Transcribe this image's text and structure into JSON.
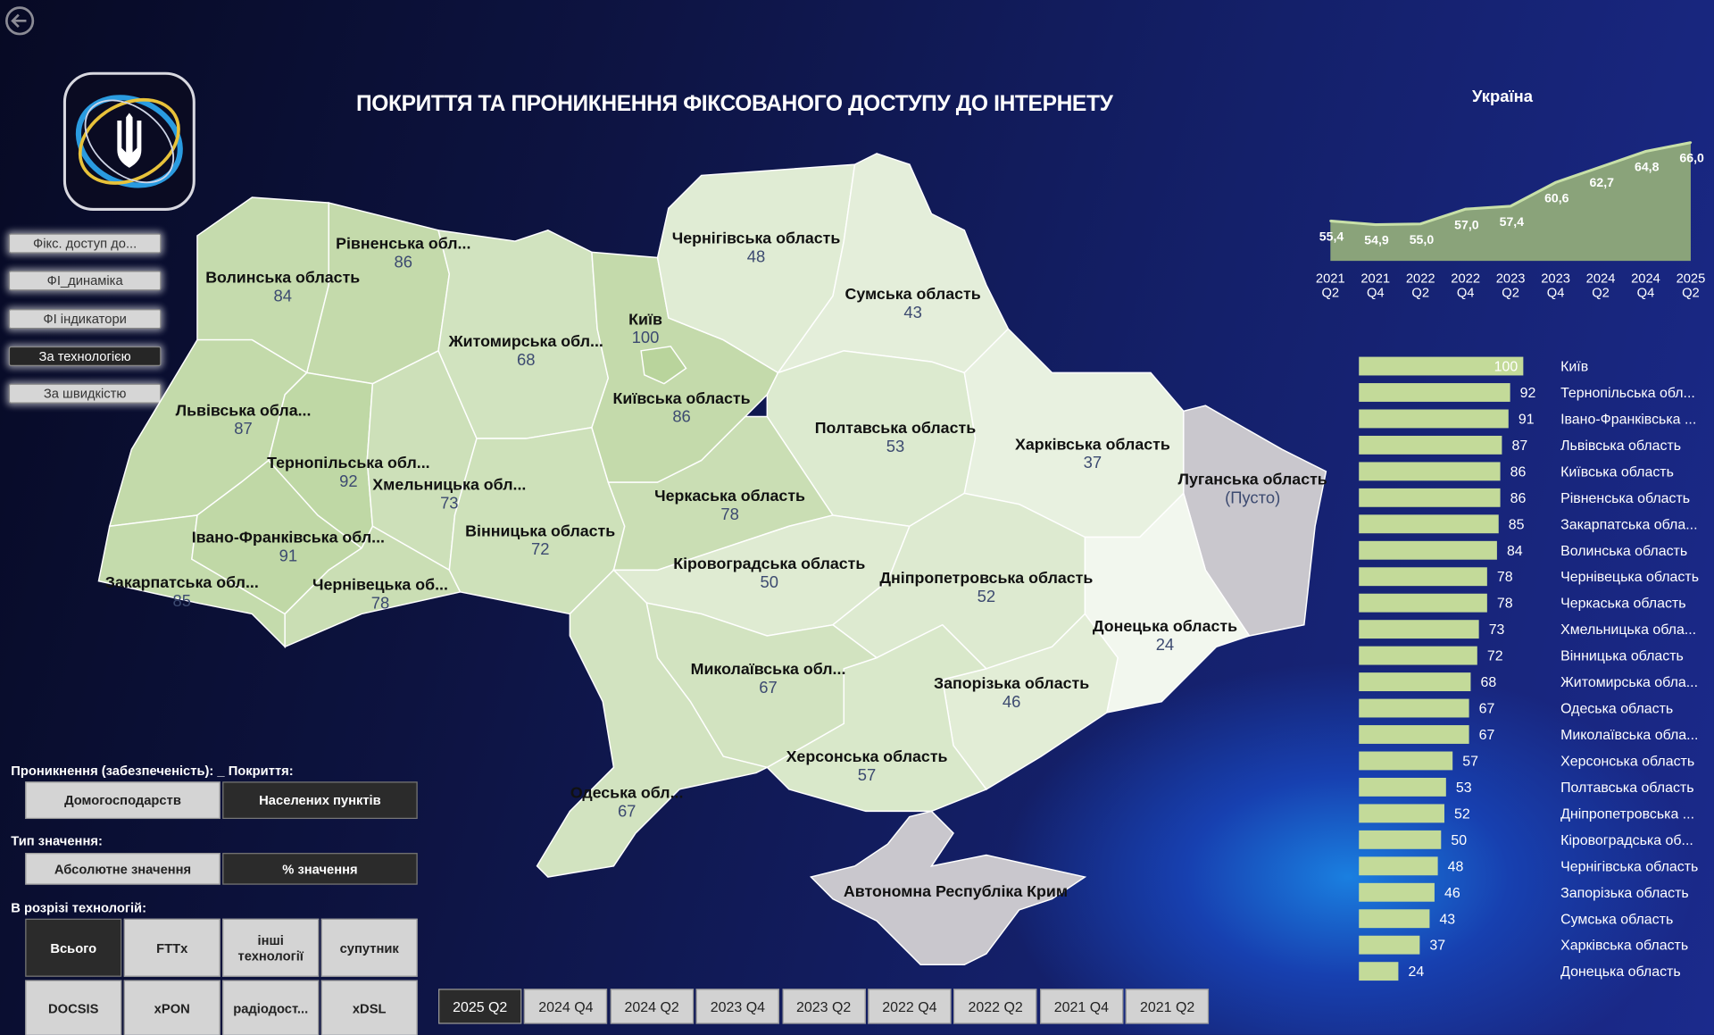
{
  "title": "ПОКРИТТЯ ТА ПРОНИКНЕННЯ ФІКСОВАНОГО ДОСТУПУ ДО ІНТЕРНЕТУ",
  "nav": {
    "back_icon": "arrow-left-circle-icon",
    "logo_icon": "trident-emblem-logo",
    "items": [
      {
        "label": "Фікс. доступ до...",
        "active": false
      },
      {
        "label": "ФІ_динаміка",
        "active": false
      },
      {
        "label": "ФІ індикатори",
        "active": false
      },
      {
        "label": "За технологією",
        "active": true
      },
      {
        "label": "За швидкістю",
        "active": false
      }
    ]
  },
  "filters": {
    "penetration_label": "Проникнення (забезпеченість): _ Покриття:",
    "penetration_options": [
      {
        "label": "Домогосподарств",
        "active": false
      },
      {
        "label": "Населених пунктів",
        "active": true
      }
    ],
    "value_type_label": "Тип значення:",
    "value_type_options": [
      {
        "label": "Абсолютне значення",
        "active": false
      },
      {
        "label": "% значення",
        "active": true
      }
    ],
    "tech_label": "В розрізі технологій:",
    "tech_options": [
      {
        "label": "Всього",
        "active": true
      },
      {
        "label": "FTTx",
        "active": false
      },
      {
        "label": "інші технології",
        "active": false
      },
      {
        "label": "супутник",
        "active": false
      },
      {
        "label": "DOCSIS",
        "active": false
      },
      {
        "label": "xPON",
        "active": false
      },
      {
        "label": "радіодост...",
        "active": false
      },
      {
        "label": "xDSL",
        "active": false
      }
    ]
  },
  "periods": [
    {
      "label": "2025 Q2",
      "active": true
    },
    {
      "label": "2024 Q4",
      "active": false
    },
    {
      "label": "2024 Q2",
      "active": false
    },
    {
      "label": "2023 Q4",
      "active": false
    },
    {
      "label": "2023 Q2",
      "active": false
    },
    {
      "label": "2022 Q4",
      "active": false
    },
    {
      "label": "2022 Q2",
      "active": false
    },
    {
      "label": "2021 Q4",
      "active": false
    },
    {
      "label": "2021 Q2",
      "active": false
    }
  ],
  "map": {
    "colors": {
      "low": "#f2f7ee",
      "high": "#b9d49c",
      "empty": "#c9c7cd",
      "empty_text": "#3b5ea8"
    },
    "regions": [
      {
        "name": "Волинська область",
        "value": "84"
      },
      {
        "name": "Рівненська обл...",
        "value": "86"
      },
      {
        "name": "Львівська обла...",
        "value": "87"
      },
      {
        "name": "Закарпатська обл...",
        "value": "85"
      },
      {
        "name": "Івано-Франківська обл...",
        "value": "91"
      },
      {
        "name": "Тернопільська обл...",
        "value": "92"
      },
      {
        "name": "Хмельницька обл...",
        "value": "73"
      },
      {
        "name": "Чернівецька об...",
        "value": "78"
      },
      {
        "name": "Житомирська обл...",
        "value": "68"
      },
      {
        "name": "Вінницька область",
        "value": "72"
      },
      {
        "name": "Київська область",
        "value": "86"
      },
      {
        "name": "Чернігівська область",
        "value": "48"
      },
      {
        "name": "Сумська область",
        "value": "43"
      },
      {
        "name": "Полтавська область",
        "value": "53"
      },
      {
        "name": "Харківська область",
        "value": "37"
      },
      {
        "name": "Луганська область",
        "value": "(Пусто)"
      },
      {
        "name": "Донецька область",
        "value": "24"
      },
      {
        "name": "Черкаська область",
        "value": "78"
      },
      {
        "name": "Кіровоградська область",
        "value": "50"
      },
      {
        "name": "Дніпропетровська область",
        "value": "52"
      },
      {
        "name": "Запорізька область",
        "value": "46"
      },
      {
        "name": "Херсонська область",
        "value": "57"
      },
      {
        "name": "Миколаївська обл...",
        "value": "67"
      },
      {
        "name": "Одеська обл...",
        "value": "67"
      },
      {
        "name": "Автономна Республіка Крим",
        "value": ""
      },
      {
        "name": "Київ",
        "value": "100"
      }
    ]
  },
  "chart_data": [
    {
      "type": "area",
      "title": "Україна",
      "categories": [
        "2021 Q2",
        "2021 Q4",
        "2022 Q2",
        "2022 Q4",
        "2023 Q2",
        "2023 Q4",
        "2024 Q2",
        "2024 Q4",
        "2025 Q2"
      ],
      "values": [
        55.4,
        54.9,
        55.0,
        57.0,
        57.4,
        60.6,
        62.7,
        64.8,
        66.0
      ],
      "value_labels": [
        "55,4",
        "54,9",
        "55,0",
        "57,0",
        "57,4",
        "60,6",
        "62,7",
        "64,8",
        "66,0"
      ],
      "ylim": [
        50,
        66
      ],
      "color": "#8aa37a",
      "line_color": "#c8e0a8"
    },
    {
      "type": "bar",
      "orientation": "horizontal",
      "color": "#c3da99",
      "xlim": [
        0,
        100
      ],
      "categories": [
        "Київ",
        "Тернопільська обл...",
        "Івано-Франківська ...",
        "Львівська область",
        "Київська область",
        "Рівненська область",
        "Закарпатська обла...",
        "Волинська область",
        "Чернівецька область",
        "Черкаська область",
        "Хмельницька обла...",
        "Вінницька область",
        "Житомирська обла...",
        "Одеська область",
        "Миколаївська обла...",
        "Херсонська область",
        "Полтавська область",
        "Дніпропетровська ...",
        "Кіровоградська об...",
        "Чернігівська область",
        "Запорізька область",
        "Сумська область",
        "Харківська область",
        "Донецька область"
      ],
      "values": [
        100,
        92,
        91,
        87,
        86,
        86,
        85,
        84,
        78,
        78,
        73,
        72,
        68,
        67,
        67,
        57,
        53,
        52,
        50,
        48,
        46,
        43,
        37,
        24
      ]
    }
  ]
}
